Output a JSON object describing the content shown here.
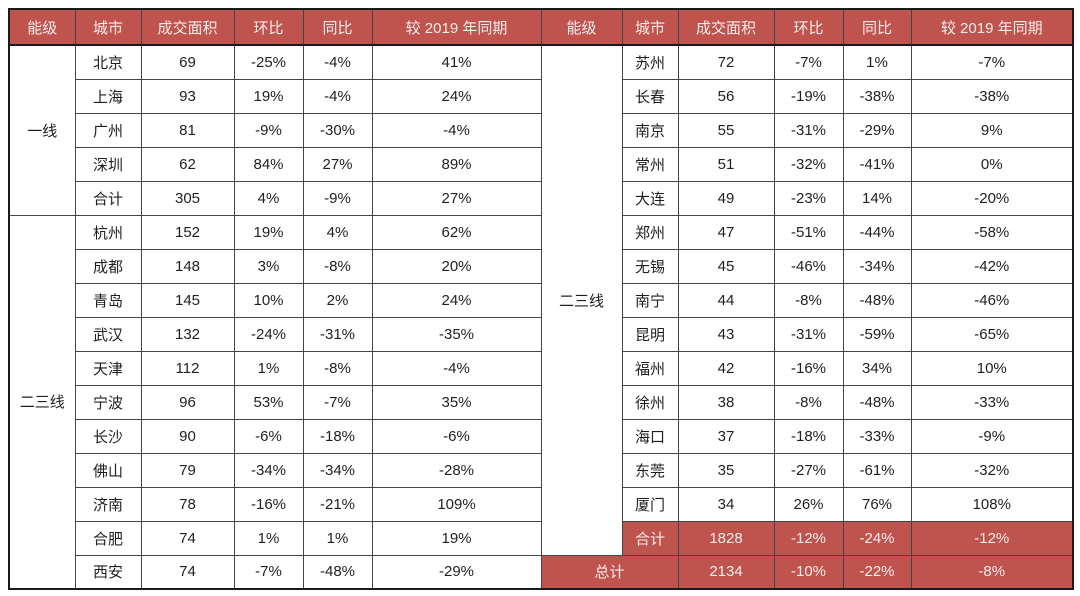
{
  "colors": {
    "header_bg": "#bf544f",
    "header_text": "#f8ecea",
    "total_row_bg": "#bf544f",
    "total_row_text": "#f8ecea",
    "body_text": "#1f1f1f",
    "grid_line": "#454545"
  },
  "header": {
    "columns": [
      "能级",
      "城市",
      "成交面积",
      "环比",
      "同比",
      "较 2019 年同期"
    ]
  },
  "left": {
    "groups": [
      {
        "tier": "一线",
        "rows": [
          [
            "北京",
            "69",
            "-25%",
            "-4%",
            "41%"
          ],
          [
            "上海",
            "93",
            "19%",
            "-4%",
            "24%"
          ],
          [
            "广州",
            "81",
            "-9%",
            "-30%",
            "-4%"
          ],
          [
            "深圳",
            "62",
            "84%",
            "27%",
            "89%"
          ],
          [
            "合计",
            "305",
            "4%",
            "-9%",
            "27%"
          ]
        ]
      },
      {
        "tier": "二三线",
        "rows": [
          [
            "杭州",
            "152",
            "19%",
            "4%",
            "62%"
          ],
          [
            "成都",
            "148",
            "3%",
            "-8%",
            "20%"
          ],
          [
            "青岛",
            "145",
            "10%",
            "2%",
            "24%"
          ],
          [
            "武汉",
            "132",
            "-24%",
            "-31%",
            "-35%"
          ],
          [
            "天津",
            "112",
            "1%",
            "-8%",
            "-4%"
          ],
          [
            "宁波",
            "96",
            "53%",
            "-7%",
            "35%"
          ],
          [
            "长沙",
            "90",
            "-6%",
            "-18%",
            "-6%"
          ],
          [
            "佛山",
            "79",
            "-34%",
            "-34%",
            "-28%"
          ],
          [
            "济南",
            "78",
            "-16%",
            "-21%",
            "109%"
          ],
          [
            "合肥",
            "74",
            "1%",
            "1%",
            "19%"
          ],
          [
            "西安",
            "74",
            "-7%",
            "-48%",
            "-29%"
          ]
        ]
      }
    ]
  },
  "right": {
    "tier": "二三线",
    "rows": [
      [
        "苏州",
        "72",
        "-7%",
        "1%",
        "-7%"
      ],
      [
        "长春",
        "56",
        "-19%",
        "-38%",
        "-38%"
      ],
      [
        "南京",
        "55",
        "-31%",
        "-29%",
        "9%"
      ],
      [
        "常州",
        "51",
        "-32%",
        "-41%",
        "0%"
      ],
      [
        "大连",
        "49",
        "-23%",
        "14%",
        "-20%"
      ],
      [
        "郑州",
        "47",
        "-51%",
        "-44%",
        "-58%"
      ],
      [
        "无锡",
        "45",
        "-46%",
        "-34%",
        "-42%"
      ],
      [
        "南宁",
        "44",
        "-8%",
        "-48%",
        "-46%"
      ],
      [
        "昆明",
        "43",
        "-31%",
        "-59%",
        "-65%"
      ],
      [
        "福州",
        "42",
        "-16%",
        "34%",
        "10%"
      ],
      [
        "徐州",
        "38",
        "-8%",
        "-48%",
        "-33%"
      ],
      [
        "海口",
        "37",
        "-18%",
        "-33%",
        "-9%"
      ],
      [
        "东莞",
        "35",
        "-27%",
        "-61%",
        "-32%"
      ],
      [
        "厦门",
        "34",
        "26%",
        "76%",
        "108%"
      ]
    ],
    "subtotal": {
      "label": "合计",
      "values": [
        "1828",
        "-12%",
        "-24%",
        "-12%"
      ]
    },
    "total": {
      "label": "总计",
      "values": [
        "2134",
        "-10%",
        "-22%",
        "-8%"
      ]
    }
  }
}
